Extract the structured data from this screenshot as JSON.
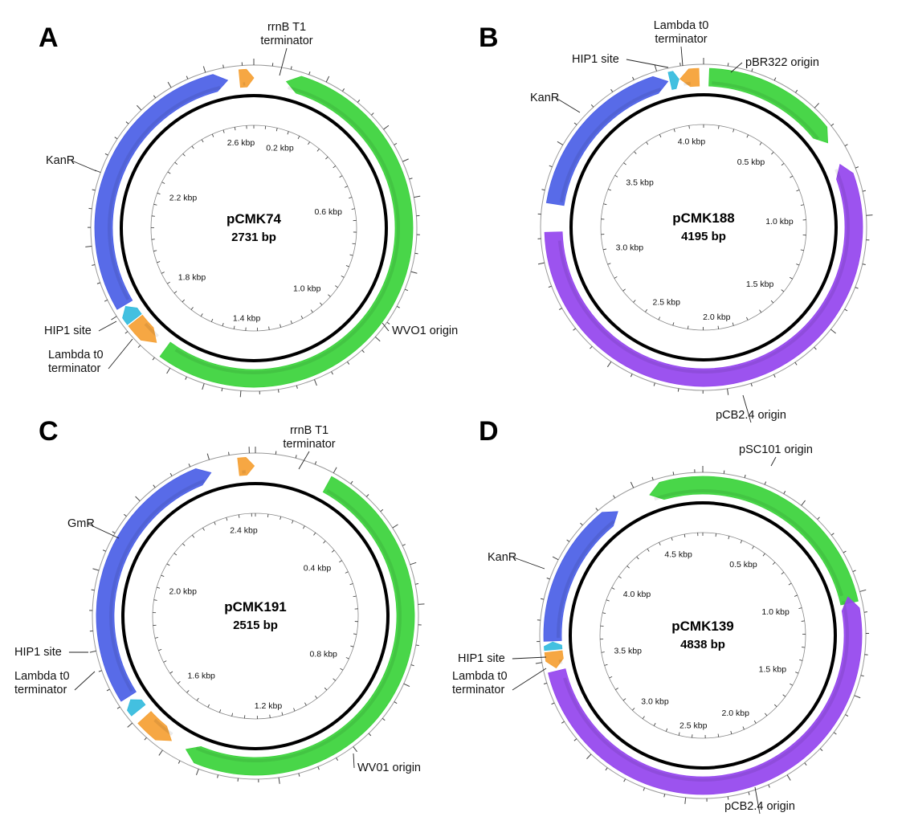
{
  "colors": {
    "kanr": "#4a5ee6",
    "origin_green": "#3ad23a",
    "origin_purple": "#9444ee",
    "terminator": "#f5a033",
    "hip1": "#33bbdd",
    "backbone": "#000000",
    "outer_ring": "#999999"
  },
  "plasmids": [
    {
      "letter": "A",
      "name": "pCMK74",
      "size_text": "2731 bp",
      "length": 2731,
      "tick_labels": [
        {
          "bp": 200,
          "text": "0.2 kbp"
        },
        {
          "bp": 600,
          "text": "0.6 kbp"
        },
        {
          "bp": 1000,
          "text": "1.0 kbp"
        },
        {
          "bp": 1400,
          "text": "1.4 kbp"
        },
        {
          "bp": 1800,
          "text": "1.8 kbp"
        },
        {
          "bp": 2200,
          "text": "2.2 kbp"
        },
        {
          "bp": 2600,
          "text": "2.6 kbp"
        }
      ],
      "features": [
        {
          "id": "wvo1",
          "type": "origin",
          "color": "origin_green",
          "start": 95,
          "end": 1640,
          "direction": "ccw"
        },
        {
          "id": "hip1",
          "type": "site",
          "color": "hip1",
          "start": 1765,
          "end": 1810,
          "direction": "cw"
        },
        {
          "id": "lambda",
          "type": "terminator",
          "color": "terminator",
          "start": 1672,
          "end": 1760,
          "direction": "ccw"
        },
        {
          "id": "kanr",
          "type": "gene",
          "color": "kanr",
          "start": 1815,
          "end": 2655,
          "direction": "cw"
        },
        {
          "id": "rrnb",
          "type": "terminator",
          "color": "terminator",
          "start": 2690,
          "end": 2731,
          "direction": "cw"
        }
      ],
      "labels": [
        {
          "feature": "rrnb",
          "lines": [
            "rrnB T1",
            "terminator"
          ]
        },
        {
          "feature": "kanr",
          "lines": [
            "KanR"
          ]
        },
        {
          "feature": "hip1",
          "lines": [
            "HIP1 site"
          ]
        },
        {
          "feature": "lambda",
          "lines": [
            "Lambda t0",
            "terminator"
          ]
        },
        {
          "feature": "wvo1",
          "lines": [
            "WVO1 origin"
          ]
        }
      ]
    },
    {
      "letter": "B",
      "name": "pCMK188",
      "size_text": "4195 bp",
      "length": 4195,
      "tick_labels": [
        {
          "bp": 500,
          "text": "0.5 kbp"
        },
        {
          "bp": 1000,
          "text": "1.0 kbp"
        },
        {
          "bp": 1500,
          "text": "1.5 kbp"
        },
        {
          "bp": 2000,
          "text": "2.0 kbp"
        },
        {
          "bp": 2500,
          "text": "2.5 kbp"
        },
        {
          "bp": 3000,
          "text": "3.0 kbp"
        },
        {
          "bp": 3500,
          "text": "3.5 kbp"
        },
        {
          "bp": 4000,
          "text": "4.0 kbp"
        }
      ],
      "features": [
        {
          "id": "pbr322",
          "type": "origin",
          "color": "origin_green",
          "start": 25,
          "end": 650,
          "direction": "cw"
        },
        {
          "id": "pcb24",
          "type": "origin",
          "color": "origin_purple",
          "start": 760,
          "end": 3125,
          "direction": "ccw"
        },
        {
          "id": "kanr",
          "type": "gene",
          "color": "kanr",
          "start": 3250,
          "end": 4035,
          "direction": "cw"
        },
        {
          "id": "hip1",
          "type": "site",
          "color": "hip1",
          "start": 4045,
          "end": 4085,
          "direction": "cw"
        },
        {
          "id": "lambda",
          "type": "terminator",
          "color": "terminator",
          "start": 4090,
          "end": 4175,
          "direction": "ccw"
        }
      ],
      "labels": [
        {
          "feature": "lambda",
          "lines": [
            "Lambda t0",
            "terminator"
          ]
        },
        {
          "feature": "hip1",
          "lines": [
            "HIP1 site"
          ]
        },
        {
          "feature": "pbr322",
          "lines": [
            "pBR322 origin"
          ]
        },
        {
          "feature": "kanr",
          "lines": [
            "KanR"
          ]
        },
        {
          "feature": "pcb24",
          "lines": [
            "pCB2.4 origin"
          ]
        }
      ]
    },
    {
      "letter": "C",
      "name": "pCMK191",
      "size_text": "2515 bp",
      "length": 2515,
      "tick_labels": [
        {
          "bp": 400,
          "text": "0.4 kbp"
        },
        {
          "bp": 800,
          "text": "0.8 kbp"
        },
        {
          "bp": 1200,
          "text": "1.2 kbp"
        },
        {
          "bp": 1600,
          "text": "1.6 kbp"
        },
        {
          "bp": 2000,
          "text": "2.0 kbp"
        },
        {
          "bp": 2400,
          "text": "2.4 kbp"
        }
      ],
      "features": [
        {
          "id": "wv01",
          "type": "origin",
          "color": "origin_green",
          "start": 200,
          "end": 1450,
          "direction": "cw"
        },
        {
          "id": "lambda",
          "type": "terminator",
          "color": "terminator",
          "start": 1495,
          "end": 1590,
          "direction": "ccw"
        },
        {
          "id": "hip1",
          "type": "site",
          "color": "hip1",
          "start": 1615,
          "end": 1650,
          "direction": "cw"
        },
        {
          "id": "gmr",
          "type": "gene",
          "color": "kanr",
          "start": 1660,
          "end": 2395,
          "direction": "cw"
        },
        {
          "id": "rrnb",
          "type": "terminator",
          "color": "terminator",
          "start": 2470,
          "end": 2512,
          "direction": "cw"
        }
      ],
      "labels": [
        {
          "feature": "rrnb",
          "lines": [
            "rrnB T1",
            "terminator"
          ]
        },
        {
          "feature": "gmr",
          "lines": [
            "GmR"
          ]
        },
        {
          "feature": "hip1",
          "lines": [
            "HIP1 site"
          ]
        },
        {
          "feature": "lambda",
          "lines": [
            "Lambda t0",
            "terminator"
          ]
        },
        {
          "feature": "wv01",
          "lines": [
            "WV01 origin"
          ]
        }
      ]
    },
    {
      "letter": "D",
      "name": "pCMK139",
      "size_text": "4838 bp",
      "length": 4838,
      "tick_labels": [
        {
          "bp": 500,
          "text": "0.5 kbp"
        },
        {
          "bp": 1000,
          "text": "1.0 kbp"
        },
        {
          "bp": 1500,
          "text": "1.5 kbp"
        },
        {
          "bp": 2000,
          "text": "2.0 kbp"
        },
        {
          "bp": 2500,
          "text": "2.5 kbp"
        },
        {
          "bp": 3000,
          "text": "3.0 kbp"
        },
        {
          "bp": 3500,
          "text": "3.5 kbp"
        },
        {
          "bp": 4000,
          "text": "4.0 kbp"
        },
        {
          "bp": 4500,
          "text": "4.5 kbp"
        }
      ],
      "features": [
        {
          "id": "psc101",
          "type": "origin",
          "color": "origin_green",
          "start": 4560,
          "end": 5880,
          "direction": "ccw"
        },
        {
          "id": "pcb24",
          "type": "origin",
          "color": "origin_purple",
          "start": 1010,
          "end": 3445,
          "direction": "ccw"
        },
        {
          "id": "lambda",
          "type": "terminator",
          "color": "terminator",
          "start": 3460,
          "end": 3545,
          "direction": "ccw"
        },
        {
          "id": "hip1",
          "type": "site",
          "color": "hip1",
          "start": 3555,
          "end": 3595,
          "direction": "cw"
        },
        {
          "id": "kanr",
          "type": "gene",
          "color": "kanr",
          "start": 3600,
          "end": 4375,
          "direction": "cw"
        }
      ],
      "labels": [
        {
          "feature": "psc101",
          "lines": [
            "pSC101 origin"
          ]
        },
        {
          "feature": "kanr",
          "lines": [
            "KanR"
          ]
        },
        {
          "feature": "hip1",
          "lines": [
            "HIP1 site"
          ]
        },
        {
          "feature": "lambda",
          "lines": [
            "Lambda t0",
            "terminator"
          ]
        },
        {
          "feature": "pcb24",
          "lines": [
            "pCB2.4 origin"
          ]
        }
      ]
    }
  ]
}
